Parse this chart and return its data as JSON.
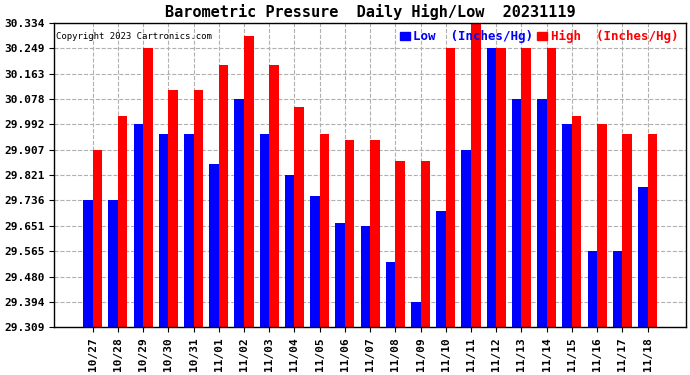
{
  "title": "Barometric Pressure  Daily High/Low  20231119",
  "copyright": "Copyright 2023 Cartronics.com",
  "legend_low": "Low  (Inches/Hg)",
  "legend_high": "High  (Inches/Hg)",
  "low_color": "#0000ff",
  "high_color": "#ff0000",
  "background_color": "#ffffff",
  "ylim": [
    29.309,
    30.334
  ],
  "yticks": [
    29.309,
    29.394,
    29.48,
    29.565,
    29.651,
    29.736,
    29.821,
    29.907,
    29.992,
    30.078,
    30.163,
    30.249,
    30.334
  ],
  "categories": [
    "10/27",
    "10/28",
    "10/29",
    "10/30",
    "10/31",
    "11/01",
    "11/02",
    "11/03",
    "11/04",
    "11/05",
    "11/06",
    "11/07",
    "11/08",
    "11/09",
    "11/10",
    "11/11",
    "11/12",
    "11/13",
    "11/14",
    "11/15",
    "11/16",
    "11/17",
    "11/18"
  ],
  "high_values": [
    29.907,
    30.02,
    30.249,
    30.107,
    30.107,
    30.192,
    30.291,
    30.192,
    30.05,
    29.96,
    29.94,
    29.94,
    29.87,
    29.87,
    30.249,
    30.334,
    30.249,
    30.249,
    30.249,
    30.02,
    29.992,
    29.96,
    29.96
  ],
  "low_values": [
    29.736,
    29.736,
    29.992,
    29.96,
    29.96,
    29.86,
    30.078,
    29.96,
    29.821,
    29.75,
    29.66,
    29.651,
    29.53,
    29.394,
    29.7,
    29.907,
    30.249,
    30.078,
    30.078,
    29.992,
    29.565,
    29.565,
    29.78
  ],
  "grid_color": "#b0b0b0",
  "title_fontsize": 11,
  "tick_fontsize": 8,
  "legend_fontsize": 9,
  "bar_width": 0.38
}
